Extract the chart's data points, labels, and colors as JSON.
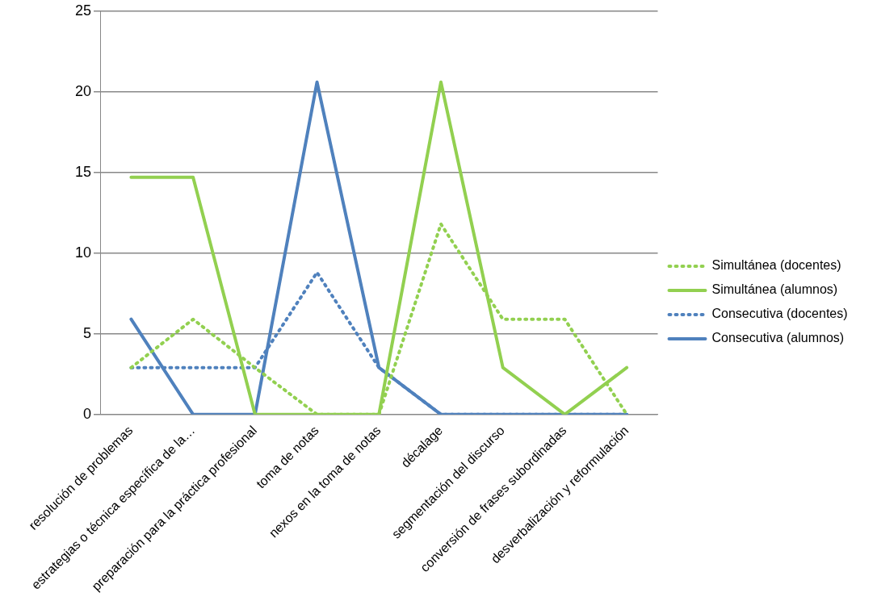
{
  "chart_data": {
    "type": "line",
    "categories": [
      "resolución de problemas",
      "estrategias o técnica específica de la…",
      "preparación para la práctica profesional",
      "toma de notas",
      "nexos en la toma de notas",
      "décalage",
      "segmentación del discurso",
      "conversión de frases subordinadas",
      "desverbalización y reformulación"
    ],
    "series": [
      {
        "name": "Simultánea (docentes)",
        "color": "#92d050",
        "line_style": "dotted",
        "values": [
          2.9,
          5.9,
          2.9,
          0,
          0,
          11.8,
          5.9,
          5.9,
          0
        ]
      },
      {
        "name": "Simultánea (alumnos)",
        "color": "#92d050",
        "line_style": "solid",
        "values": [
          14.7,
          14.7,
          0,
          0,
          0,
          20.6,
          2.9,
          0,
          2.9
        ]
      },
      {
        "name": "Consecutiva (docentes)",
        "color": "#4f81bd",
        "line_style": "dotted",
        "values": [
          2.9,
          2.9,
          2.9,
          8.8,
          2.9,
          0,
          0,
          0,
          0
        ]
      },
      {
        "name": "Consecutiva (alumnos)",
        "color": "#4f81bd",
        "line_style": "solid",
        "values": [
          5.9,
          0,
          0,
          20.6,
          2.9,
          0,
          0,
          0,
          0
        ]
      }
    ],
    "ylim": [
      0,
      25
    ],
    "yticks": [
      0,
      5,
      10,
      15,
      20,
      25
    ],
    "grid": "y",
    "legend": "right",
    "marker": "none"
  }
}
